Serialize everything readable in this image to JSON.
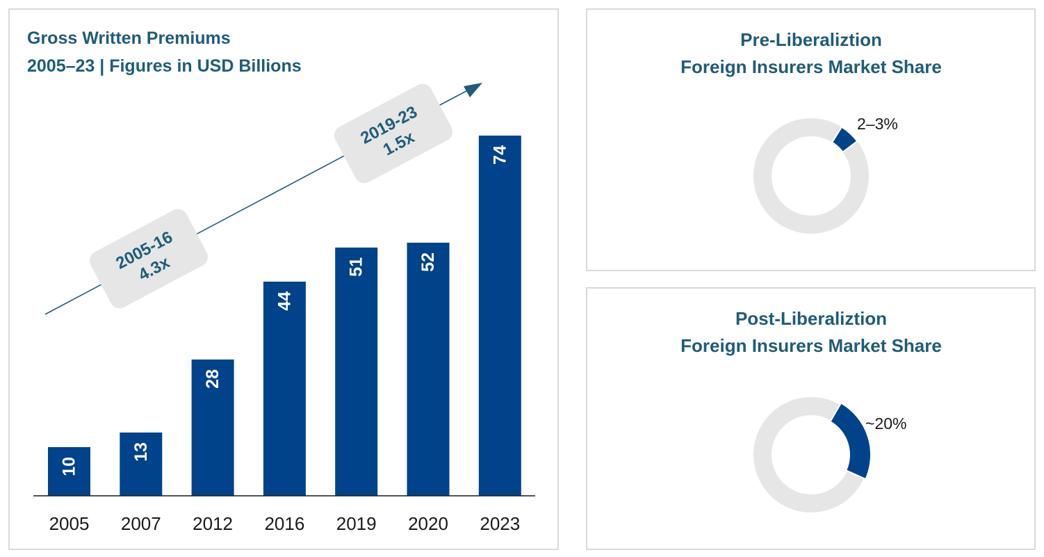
{
  "colors": {
    "bar": "#00438a",
    "title": "#1f5c7a",
    "donut_bg": "#e6e6e6",
    "callout_bg": "#e6e6e6",
    "axis": "#1a1a1a"
  },
  "chart_data": [
    {
      "type": "bar",
      "title": "Gross Written Premiums",
      "subtitle": "2005–23 | Figures in USD Billions",
      "categories": [
        "2005",
        "2007",
        "2012",
        "2016",
        "2019",
        "2020",
        "2023"
      ],
      "values": [
        10,
        13,
        28,
        44,
        51,
        52,
        74
      ],
      "ylim": [
        0,
        74
      ],
      "grid": false,
      "annotations": [
        {
          "period": "2005-16",
          "multiple": "4.3x"
        },
        {
          "period": "2019-23",
          "multiple": "1.5x"
        }
      ]
    },
    {
      "type": "pie",
      "title_line1": "Pre-Liberaliztion",
      "title_line2": "Foreign Insurers Market Share",
      "share_percent": 2.5,
      "label": "2–3%"
    },
    {
      "type": "pie",
      "title_line1": "Post-Liberaliztion",
      "title_line2": "Foreign Insurers Market Share",
      "share_percent": 20,
      "label": "~20%"
    }
  ]
}
